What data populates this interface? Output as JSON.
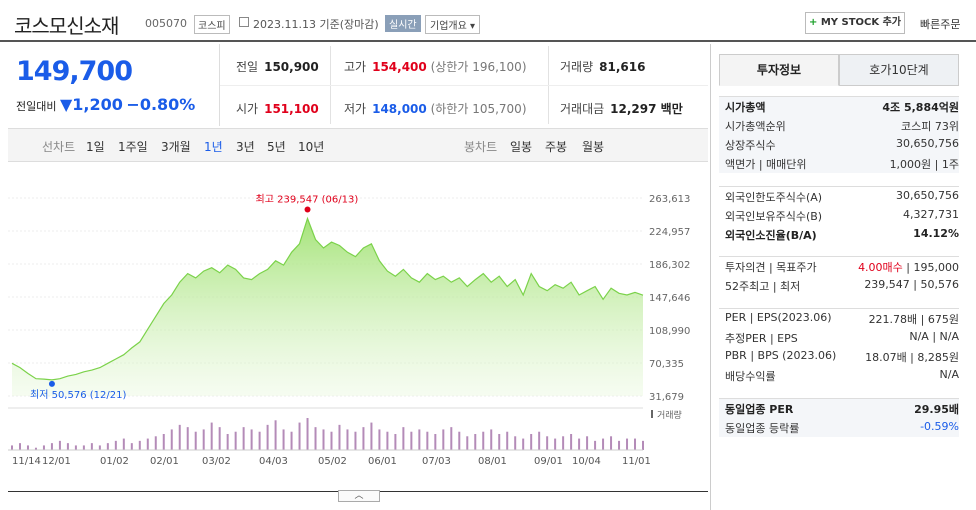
{
  "header": {
    "name": "코스모신소재",
    "code": "005070",
    "market": "코스피",
    "date_label": "2023.11.13 기준(장마감)",
    "realtime": "실시간",
    "company_info": "기업개요",
    "mystock": "MY STOCK 추가",
    "quick_order": "빠른주문"
  },
  "price": {
    "current": "149,700",
    "change_label": "전일대비",
    "change_arrow": "▼",
    "change_value": "1,200",
    "change_pct": "−0.80%"
  },
  "quotes": {
    "prev_label": "전일",
    "prev": "150,900",
    "high_label": "고가",
    "high": "154,400",
    "upper_label": "(상한가 196,100)",
    "vol_label": "거래량",
    "vol": "81,616",
    "open_label": "시가",
    "open": "151,100",
    "low_label": "저가",
    "low": "148,000",
    "lower_label": "(하한가 105,700)",
    "amt_label": "거래대금",
    "amt": "12,297 백만"
  },
  "chart_tabs": {
    "line_label": "선차트",
    "periods": [
      "1일",
      "1주일",
      "3개월",
      "1년",
      "3년",
      "5년",
      "10년"
    ],
    "selected": "1년",
    "candle_label": "봉차트",
    "candles": [
      "일봉",
      "주봉",
      "월봉"
    ]
  },
  "chart_data": {
    "type": "area",
    "yticks": [
      263613,
      224957,
      186302,
      147646,
      108990,
      70335,
      31679
    ],
    "ylim": [
      31679,
      263613
    ],
    "xlabels": [
      "11/14",
      "12/01",
      "01/02",
      "02/01",
      "03/02",
      "04/03",
      "05/02",
      "06/01",
      "07/03",
      "08/01",
      "09/01",
      "10/04",
      "11/01"
    ],
    "values": [
      70000,
      65000,
      58000,
      52000,
      51500,
      50576,
      52000,
      55000,
      57000,
      60000,
      62000,
      65000,
      70000,
      75000,
      80000,
      88000,
      95000,
      110000,
      125000,
      140000,
      150000,
      165000,
      175000,
      170000,
      178000,
      182000,
      176000,
      185000,
      180000,
      170000,
      168000,
      175000,
      180000,
      190000,
      185000,
      200000,
      210000,
      239547,
      215000,
      205000,
      212000,
      208000,
      200000,
      195000,
      205000,
      210000,
      190000,
      178000,
      172000,
      180000,
      170000,
      165000,
      175000,
      168000,
      172000,
      165000,
      170000,
      160000,
      168000,
      175000,
      165000,
      172000,
      160000,
      168000,
      150000,
      175000,
      160000,
      155000,
      162000,
      158000,
      165000,
      150000,
      155000,
      160000,
      145000,
      158000,
      152000,
      150000,
      153000,
      149700
    ],
    "volume_label": "거래량",
    "volumes": [
      2,
      3,
      2,
      1,
      2,
      3,
      4,
      3,
      2,
      2,
      3,
      2,
      3,
      4,
      5,
      3,
      4,
      5,
      6,
      7,
      9,
      11,
      10,
      8,
      9,
      12,
      10,
      7,
      8,
      10,
      9,
      8,
      11,
      13,
      9,
      8,
      12,
      14,
      10,
      9,
      8,
      11,
      9,
      8,
      10,
      12,
      9,
      8,
      7,
      10,
      8,
      9,
      8,
      7,
      9,
      10,
      8,
      6,
      7,
      8,
      9,
      7,
      8,
      6,
      5,
      7,
      8,
      6,
      5,
      6,
      7,
      5,
      6,
      4,
      5,
      6,
      4,
      5,
      5,
      4
    ],
    "high_label": "최고 239,547 (06/13)",
    "low_label": "최저 50,576 (12/21)",
    "line_color": "#7bd24a"
  },
  "right": {
    "tab1": "투자정보",
    "tab2": "호가10단계",
    "g1": [
      {
        "k": "시가총액",
        "v": "4조 5,884억원",
        "bold": true
      },
      {
        "k": "시가총액순위",
        "v": "코스피 73위"
      },
      {
        "k": "상장주식수",
        "v": "30,650,756"
      },
      {
        "k": "액면가 | 매매단위",
        "v": "1,000원 | 1주"
      }
    ],
    "g2": [
      {
        "k": "외국인한도주식수(A)",
        "v": "30,650,756"
      },
      {
        "k": "외국인보유주식수(B)",
        "v": "4,327,731"
      },
      {
        "k": "외국인소진율(B/A)",
        "v": "14.12%",
        "bold": true
      }
    ],
    "g3": [
      {
        "k": "투자의견 | 목표주가",
        "v_red": "4.00매수",
        "v": "| 195,000"
      },
      {
        "k": "52주최고 | 최저",
        "v": "239,547 | 50,576"
      }
    ],
    "g4": [
      {
        "k": "PER | EPS(2023.06)",
        "v": "221.78배 | 675원"
      },
      {
        "k": "추정PER | EPS",
        "v": "N/A | N/A"
      },
      {
        "k": "PBR | BPS (2023.06)",
        "v": "18.07배 | 8,285원"
      },
      {
        "k": "배당수익률",
        "v": "N/A"
      }
    ],
    "g5": [
      {
        "k": "동일업종 PER",
        "v": "29.95배",
        "bold": true
      },
      {
        "k": "동일업종 등락률",
        "v": "-0.59%",
        "blue": true
      }
    ]
  }
}
